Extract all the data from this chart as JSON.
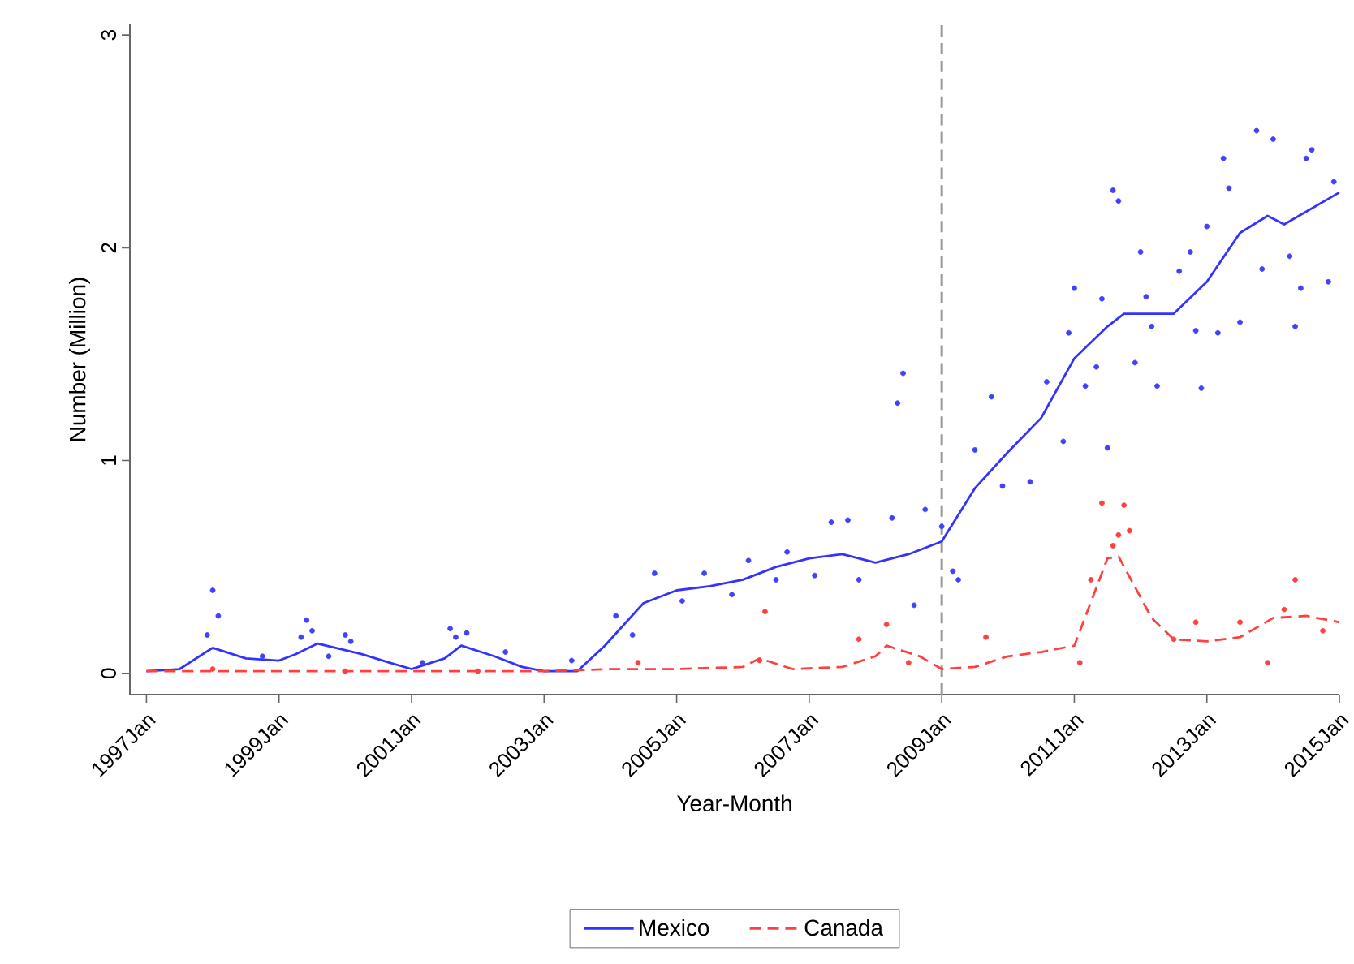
{
  "chart_data": {
    "type": "line",
    "xlabel": "Year-Month",
    "ylabel": "Number (Million)",
    "xlim": [
      "1996-10",
      "2015-01"
    ],
    "ylim": [
      -0.1,
      3.05
    ],
    "xticks": [
      {
        "value": "1997-01",
        "label": "1997Jan"
      },
      {
        "value": "1999-01",
        "label": "1999Jan"
      },
      {
        "value": "2001-01",
        "label": "2001Jan"
      },
      {
        "value": "2003-01",
        "label": "2003Jan"
      },
      {
        "value": "2005-01",
        "label": "2005Jan"
      },
      {
        "value": "2007-01",
        "label": "2007Jan"
      },
      {
        "value": "2009-01",
        "label": "2009Jan"
      },
      {
        "value": "2011-01",
        "label": "2011Jan"
      },
      {
        "value": "2013-01",
        "label": "2013Jan"
      },
      {
        "value": "2015-01",
        "label": "2015Jan"
      }
    ],
    "yticks": [
      0,
      1,
      2,
      3
    ],
    "legend": "bottom",
    "ref_lines": [
      {
        "axis": "x",
        "value": "2009-01",
        "color": "#999999",
        "line_style": "dashed"
      }
    ],
    "series": [
      {
        "type": "scatter",
        "color": "#4040ff",
        "marker": "circle",
        "x": [
          "2013-10",
          "2014-01",
          "2014-08",
          "2014-07",
          "2014-12",
          "2013-04",
          "2013-05",
          "2011-08",
          "2011-09",
          "2013-01",
          "2012-01",
          "2012-10",
          "2012-08",
          "2013-11",
          "2014-04",
          "2014-06",
          "2014-11",
          "2011-01",
          "2011-06",
          "2012-02",
          "2013-07",
          "2013-03",
          "2012-11",
          "2014-05",
          "2012-03",
          "2010-12",
          "2011-12",
          "2012-04",
          "2012-12",
          "2011-05",
          "2011-03",
          "2010-08",
          "2009-10",
          "2010-11",
          "2011-07",
          "2010-05",
          "2009-12",
          "2009-07",
          "2008-10",
          "2009-01",
          "2009-04",
          "2009-03",
          "2008-05",
          "2008-06",
          "2007-05",
          "2007-08",
          "2008-04",
          "2008-08",
          "2007-10",
          "2007-02",
          "2006-09",
          "2006-02",
          "2006-07",
          "2005-11",
          "2005-02",
          "2004-09",
          "2004-02",
          "2004-05",
          "2003-06",
          "2005-06",
          "1998-01",
          "1998-02",
          "1997-12",
          "1999-06",
          "1999-07",
          "1999-05",
          "2000-01",
          "2000-02",
          "1999-10",
          "2001-08",
          "2001-11",
          "2001-09",
          "2002-06",
          "1998-10",
          "2001-03"
        ],
        "values": [
          2.55,
          2.51,
          2.46,
          2.42,
          2.31,
          2.42,
          2.28,
          2.27,
          2.22,
          2.1,
          1.98,
          1.98,
          1.89,
          1.9,
          1.96,
          1.81,
          1.84,
          1.81,
          1.76,
          1.77,
          1.65,
          1.6,
          1.61,
          1.63,
          1.63,
          1.6,
          1.46,
          1.35,
          1.34,
          1.44,
          1.35,
          1.37,
          1.3,
          1.09,
          1.06,
          0.9,
          0.88,
          1.05,
          0.77,
          0.69,
          0.44,
          0.48,
          1.27,
          1.41,
          0.71,
          0.72,
          0.73,
          0.32,
          0.44,
          0.46,
          0.57,
          0.53,
          0.44,
          0.37,
          0.34,
          0.47,
          0.27,
          0.18,
          0.06,
          0.47,
          0.39,
          0.27,
          0.18,
          0.25,
          0.2,
          0.17,
          0.18,
          0.15,
          0.08,
          0.21,
          0.19,
          0.17,
          0.1,
          0.08,
          0.05
        ]
      },
      {
        "type": "scatter",
        "color": "#ff4040",
        "marker": "circle",
        "x": [
          "2011-06",
          "2011-10",
          "2011-11",
          "2011-09",
          "2011-08",
          "2011-04",
          "2014-05",
          "2009-09",
          "2011-02",
          "2012-11",
          "2013-07",
          "2013-12",
          "2012-07",
          "2014-10",
          "2014-03",
          "2006-05",
          "2008-03",
          "2007-10",
          "2008-07",
          "2006-04",
          "2004-06",
          "1998-01",
          "2000-01",
          "2002-01"
        ],
        "values": [
          0.8,
          0.79,
          0.67,
          0.65,
          0.6,
          0.44,
          0.44,
          0.17,
          0.05,
          0.24,
          0.24,
          0.05,
          0.16,
          0.2,
          0.3,
          0.29,
          0.23,
          0.16,
          0.05,
          0.06,
          0.05,
          0.02,
          0.01,
          0.01
        ]
      },
      {
        "name": "Mexico",
        "color": "#3333ff",
        "line_style": "solid",
        "x": [
          "1997-01",
          "1997-07",
          "1998-01",
          "1998-07",
          "1999-01",
          "1999-04",
          "1999-08",
          "2000-04",
          "2000-09",
          "2001-01",
          "2001-07",
          "2001-10",
          "2002-04",
          "2002-09",
          "2003-01",
          "2003-07",
          "2003-12",
          "2004-07",
          "2005-01",
          "2005-07",
          "2006-01",
          "2006-07",
          "2007-01",
          "2007-07",
          "2008-01",
          "2008-07",
          "2009-01",
          "2009-07",
          "2010-01",
          "2010-07",
          "2011-01",
          "2011-07",
          "2011-10",
          "2012-07",
          "2013-01",
          "2013-07",
          "2013-12",
          "2014-03",
          "2015-01"
        ],
        "values": [
          0.01,
          0.02,
          0.12,
          0.07,
          0.06,
          0.09,
          0.14,
          0.09,
          0.05,
          0.02,
          0.07,
          0.13,
          0.08,
          0.03,
          0.01,
          0.01,
          0.13,
          0.33,
          0.39,
          0.41,
          0.44,
          0.5,
          0.54,
          0.56,
          0.52,
          0.56,
          0.62,
          0.87,
          1.04,
          1.2,
          1.48,
          1.63,
          1.69,
          1.69,
          1.84,
          2.07,
          2.15,
          2.11,
          2.26
        ]
      },
      {
        "name": "Canada",
        "color": "#ff4040",
        "line_style": "dashed",
        "x": [
          "1997-01",
          "2003-01",
          "2004-01",
          "2005-01",
          "2006-01",
          "2006-04",
          "2006-10",
          "2007-07",
          "2008-01",
          "2008-03",
          "2008-09",
          "2009-01",
          "2009-07",
          "2010-01",
          "2010-07",
          "2011-01",
          "2011-07",
          "2011-09",
          "2012-03",
          "2012-07",
          "2013-01",
          "2013-07",
          "2014-01",
          "2014-07",
          "2015-01"
        ],
        "values": [
          0.01,
          0.01,
          0.02,
          0.02,
          0.03,
          0.07,
          0.02,
          0.03,
          0.08,
          0.13,
          0.08,
          0.02,
          0.03,
          0.08,
          0.1,
          0.13,
          0.54,
          0.55,
          0.26,
          0.16,
          0.15,
          0.17,
          0.26,
          0.27,
          0.24
        ]
      }
    ]
  }
}
